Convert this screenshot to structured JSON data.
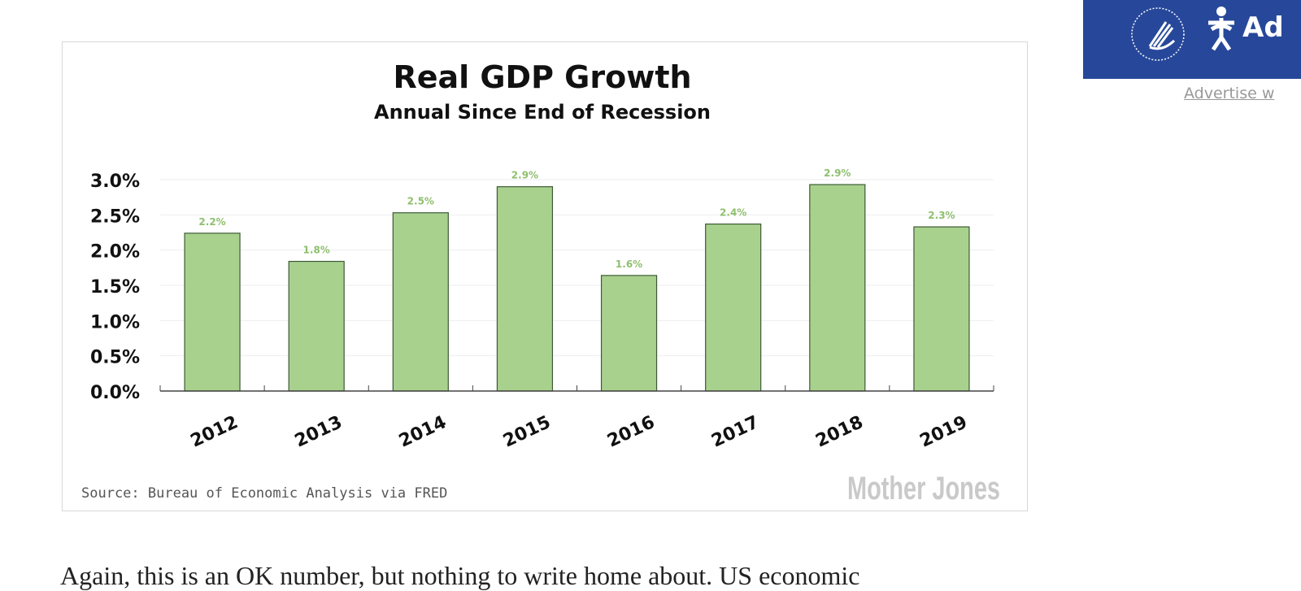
{
  "chart_data": {
    "type": "bar",
    "title": "Real GDP Growth",
    "subtitle": "Annual Since End of Recession",
    "categories": [
      "2012",
      "2013",
      "2014",
      "2015",
      "2016",
      "2017",
      "2018",
      "2019"
    ],
    "values": [
      2.24,
      1.84,
      2.53,
      2.9,
      1.64,
      2.37,
      2.93,
      2.33
    ],
    "data_labels": [
      "2.2%",
      "1.8%",
      "2.5%",
      "2.9%",
      "1.6%",
      "2.4%",
      "2.9%",
      "2.3%"
    ],
    "ylim": [
      0,
      3.0
    ],
    "yticks": [
      0,
      0.5,
      1.0,
      1.5,
      2.0,
      2.5,
      3.0
    ],
    "ytick_labels": [
      "0.0%",
      "0.5%",
      "1.0%",
      "1.5%",
      "2.0%",
      "2.5%",
      "3.0%"
    ],
    "xlabel": "",
    "ylabel": "",
    "grid": true,
    "source": "Source: Bureau of Economic Analysis via FRED",
    "logo": "Mother Jones",
    "bar_color": "#a9d18e",
    "label_color": "#8fbf6e"
  },
  "ad": {
    "text": "Ad",
    "link": "Advertise w"
  },
  "article": {
    "partial_line": "Again, this is an OK number, but nothing to write home about. US economic"
  }
}
